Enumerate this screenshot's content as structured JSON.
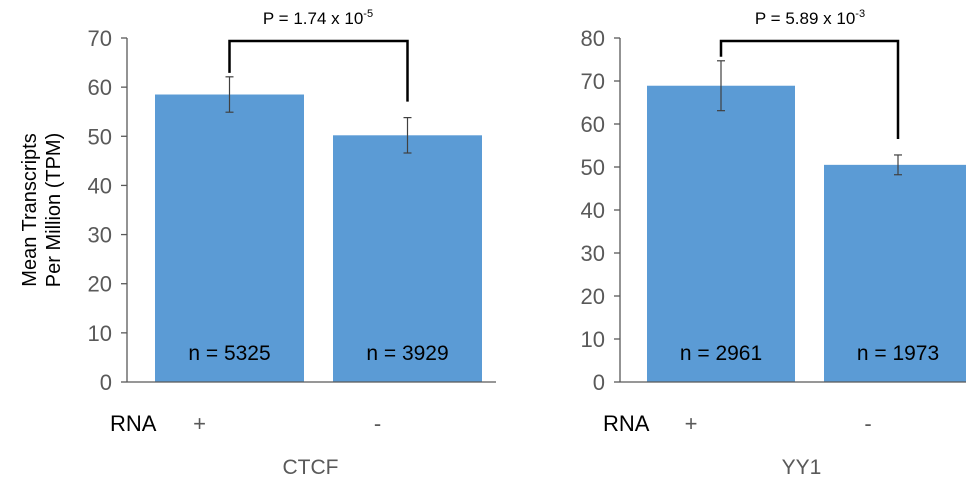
{
  "shared": {
    "ylabel_lines": [
      "Mean Transcripts",
      "Per Million (TPM)"
    ],
    "row_label": "RNA",
    "bar_color": "#5B9BD5",
    "axis_color": "#595959",
    "tick_text_color": "#595959",
    "error_bar_color": "#404040"
  },
  "chart_data": [
    {
      "type": "bar",
      "title": "",
      "xlabel": "CTCF",
      "ylabel": "Mean Transcripts Per Million (TPM)",
      "categories": [
        "+",
        "-"
      ],
      "values": [
        58.5,
        50.2
      ],
      "errors": [
        3.6,
        3.6
      ],
      "n_labels": [
        "n = 5325",
        "n = 3929"
      ],
      "ylim": [
        0,
        70
      ],
      "yticks": [
        0,
        10,
        20,
        30,
        40,
        50,
        60,
        70
      ],
      "grid": false,
      "significance": {
        "prefix": "P = 1.74 x 10",
        "exponent": "-5"
      }
    },
    {
      "type": "bar",
      "title": "",
      "xlabel": "YY1",
      "ylabel": "",
      "categories": [
        "+",
        "-"
      ],
      "values": [
        68.9,
        50.5
      ],
      "errors": [
        5.8,
        2.3
      ],
      "n_labels": [
        "n = 2961",
        "n = 1973"
      ],
      "ylim": [
        0,
        80
      ],
      "yticks": [
        0,
        10,
        20,
        30,
        40,
        50,
        60,
        70,
        80
      ],
      "grid": false,
      "significance": {
        "prefix": "P = 5.89 x 10",
        "exponent": "-3"
      }
    }
  ]
}
